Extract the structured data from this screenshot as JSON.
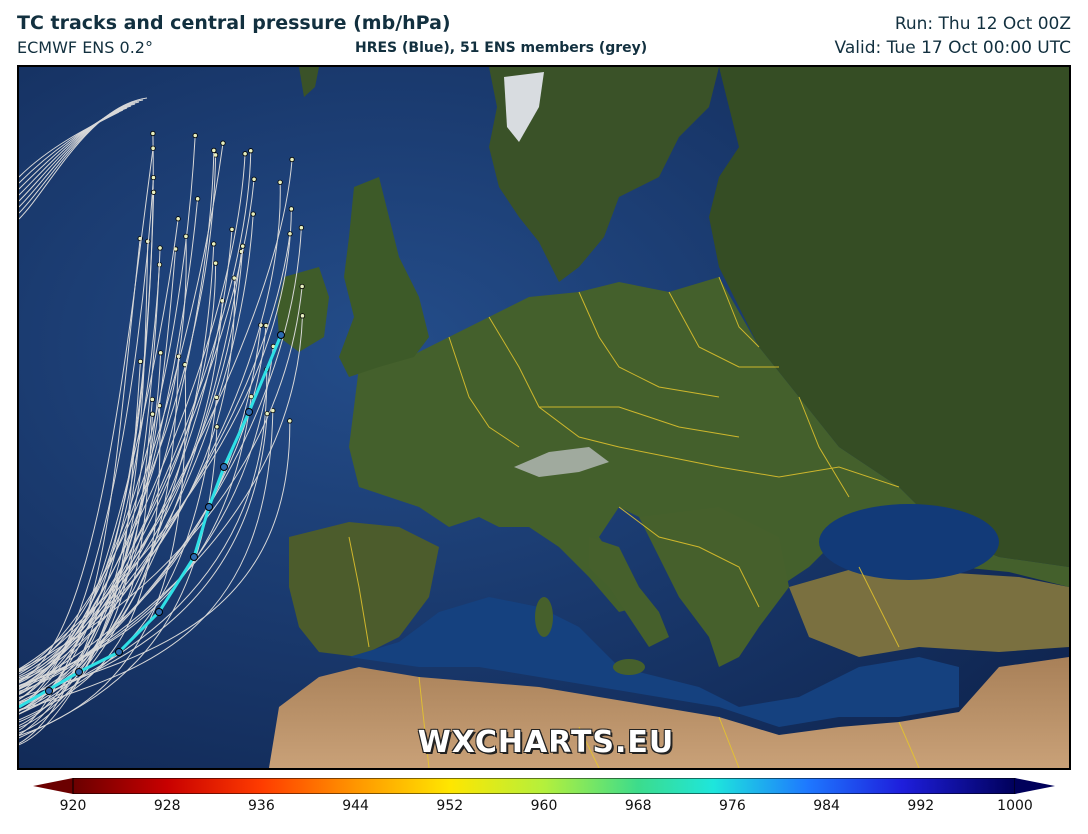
{
  "header": {
    "title": "TC tracks and central pressure (mb/hPa)",
    "model": "ECMWF ENS 0.2°",
    "subtitle": "HRES (Blue), 51 ENS members (grey)",
    "run": "Run: Thu 12 Oct 00Z",
    "valid": "Valid: Tue 17 Oct 00:00 UTC"
  },
  "watermark": "WXCHARTS.EU",
  "colorbar": {
    "labels": [
      "920",
      "928",
      "936",
      "944",
      "952",
      "960",
      "968",
      "976",
      "984",
      "992",
      "1000"
    ],
    "colors": [
      "#6b0000",
      "#c80000",
      "#ff3c00",
      "#ff9600",
      "#ffe600",
      "#b4f03c",
      "#3cdc8c",
      "#1ee6dc",
      "#1e78ff",
      "#1e1edc",
      "#00005a"
    ]
  },
  "map": {
    "region": "Europe and North Atlantic",
    "hres_color": "#2fe0e6",
    "ens_color": "#d8d8d8",
    "border_color": "#e6c62c",
    "ocean_color": "#1c3f78",
    "land_color": "#3f5a2a",
    "desert_color": "#b89068"
  }
}
